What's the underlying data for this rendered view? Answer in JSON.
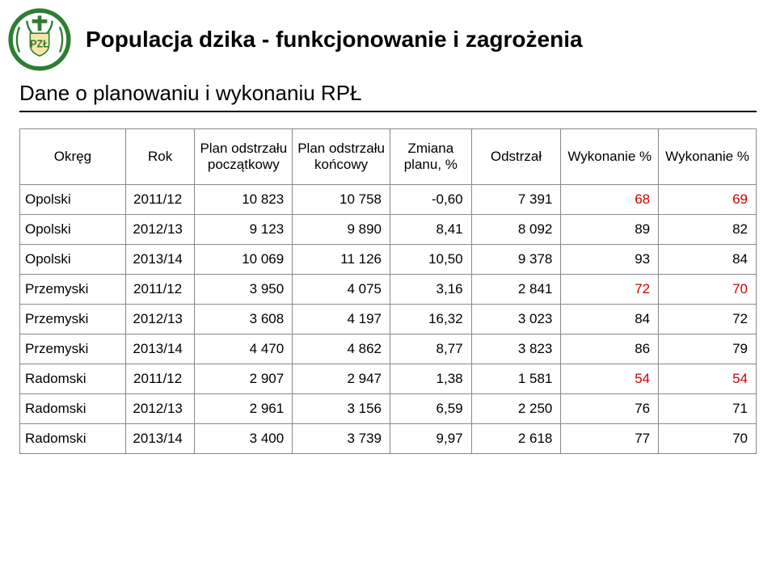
{
  "title": "Populacja dzika - funkcjonowanie i zagrożenia",
  "subtitle": "Dane o planowaniu i wykonaniu RPŁ",
  "logo": {
    "text": "PZŁ",
    "ring_color": "#2e7d32",
    "inner_color": "#f5e6a8",
    "text_color": "#2e7d32"
  },
  "columns": [
    "Okręg",
    "Rok",
    "Plan odstrzału początkowy",
    "Plan odstrzału końcowy",
    "Zmiana planu, %",
    "Odstrzał",
    "Wykonanie %",
    "Wykonanie %"
  ],
  "rows": [
    {
      "region": "Opolski",
      "year": "2011/12",
      "p_start": "10 823",
      "p_end": "10 758",
      "chg": "-0,60",
      "ods": "7 391",
      "wyk": "68",
      "wyk_red": true,
      "wyk2": "69",
      "wyk2_red": true
    },
    {
      "region": "Opolski",
      "year": "2012/13",
      "p_start": "9 123",
      "p_end": "9 890",
      "chg": "8,41",
      "ods": "8 092",
      "wyk": "89",
      "wyk_red": false,
      "wyk2": "82",
      "wyk2_red": false
    },
    {
      "region": "Opolski",
      "year": "2013/14",
      "p_start": "10 069",
      "p_end": "11 126",
      "chg": "10,50",
      "ods": "9 378",
      "wyk": "93",
      "wyk_red": false,
      "wyk2": "84",
      "wyk2_red": false
    },
    {
      "region": "Przemyski",
      "year": "2011/12",
      "p_start": "3 950",
      "p_end": "4 075",
      "chg": "3,16",
      "ods": "2 841",
      "wyk": "72",
      "wyk_red": true,
      "wyk2": "70",
      "wyk2_red": true
    },
    {
      "region": "Przemyski",
      "year": "2012/13",
      "p_start": "3 608",
      "p_end": "4 197",
      "chg": "16,32",
      "ods": "3 023",
      "wyk": "84",
      "wyk_red": false,
      "wyk2": "72",
      "wyk2_red": false
    },
    {
      "region": "Przemyski",
      "year": "2013/14",
      "p_start": "4 470",
      "p_end": "4 862",
      "chg": "8,77",
      "ods": "3 823",
      "wyk": "86",
      "wyk_red": false,
      "wyk2": "79",
      "wyk2_red": false
    },
    {
      "region": "Radomski",
      "year": "2011/12",
      "p_start": "2 907",
      "p_end": "2 947",
      "chg": "1,38",
      "ods": "1 581",
      "wyk": "54",
      "wyk_red": true,
      "wyk2": "54",
      "wyk2_red": true
    },
    {
      "region": "Radomski",
      "year": "2012/13",
      "p_start": "2 961",
      "p_end": "3 156",
      "chg": "6,59",
      "ods": "2 250",
      "wyk": "76",
      "wyk_red": false,
      "wyk2": "71",
      "wyk2_red": false
    },
    {
      "region": "Radomski",
      "year": "2013/14",
      "p_start": "3 400",
      "p_end": "3 739",
      "chg": "9,97",
      "ods": "2 618",
      "wyk": "77",
      "wyk_red": false,
      "wyk2": "70",
      "wyk2_red": false
    }
  ]
}
